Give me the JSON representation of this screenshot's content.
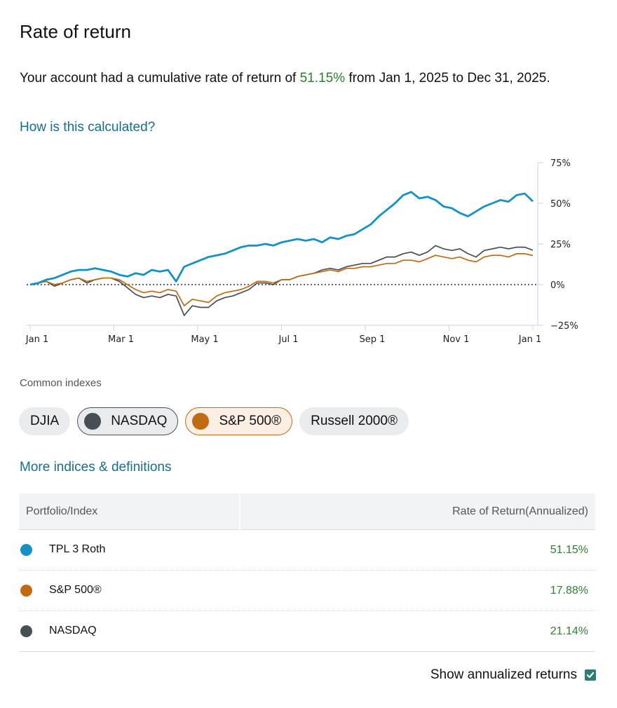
{
  "header": {
    "title": "Rate of return",
    "summary_prefix": "Your account had a cumulative rate of return of ",
    "summary_value": "51.15%",
    "summary_suffix": " from Jan 1, 2025 to Dec 31, 2025.",
    "calc_link": "How is this calculated?"
  },
  "colors": {
    "portfolio": "#1491c6",
    "sp500": "#c06a14",
    "nasdaq": "#474e56",
    "positive": "#2e7d32",
    "link": "#136f8e",
    "axis": "#c9d6ea"
  },
  "chart_data": {
    "type": "line",
    "title": "",
    "xlabel": "",
    "ylabel": "",
    "x_ticks": [
      "Jan 1",
      "Mar 1",
      "May 1",
      "Jul 1",
      "Sep 1",
      "Nov 1",
      "Jan 1"
    ],
    "y_ticks": [
      "75%",
      "50%",
      "25%",
      "0%",
      "−25%"
    ],
    "y_tick_values": [
      75,
      50,
      25,
      0,
      -25
    ],
    "ylim": [
      -25,
      75
    ],
    "xlim_weeks": [
      0,
      52
    ],
    "reference_line": {
      "value": 0,
      "style": "dotted"
    },
    "grid": false,
    "legend": "none",
    "series": [
      {
        "name": "TPL 3 Roth",
        "color": "#1491c6",
        "values": [
          0,
          1,
          3,
          4,
          6,
          8,
          9,
          9,
          10,
          9,
          8,
          6,
          5,
          7,
          6,
          9,
          8,
          9,
          2,
          11,
          13,
          15,
          17,
          18,
          19,
          21,
          23,
          24,
          24,
          25,
          24,
          26,
          27,
          28,
          27,
          28,
          26,
          29,
          28,
          30,
          31,
          34,
          37,
          42,
          46,
          50,
          55,
          57,
          53,
          54,
          52,
          48,
          47,
          44,
          42,
          45,
          48,
          50,
          52,
          51,
          55,
          56,
          51.15
        ]
      },
      {
        "name": "S&P 500®",
        "color": "#c06a14",
        "values": [
          0,
          1,
          2,
          0,
          1,
          3,
          4,
          2,
          3,
          4,
          4,
          3,
          0,
          -3,
          -5,
          -4,
          -5,
          -3,
          -4,
          -13,
          -9,
          -10,
          -11,
          -7,
          -5,
          -4,
          -3,
          -1,
          2,
          2,
          1,
          3,
          3,
          5,
          6,
          7,
          8,
          9,
          8,
          10,
          10,
          11,
          11,
          12,
          13,
          13,
          15,
          15,
          14,
          16,
          18,
          17,
          16,
          17,
          15,
          14,
          17,
          18,
          18,
          17,
          19,
          19,
          17.88
        ]
      },
      {
        "name": "NASDAQ",
        "color": "#474e56",
        "values": [
          0,
          1,
          2,
          -1,
          1,
          3,
          4,
          1,
          3,
          4,
          4,
          2,
          -2,
          -6,
          -8,
          -7,
          -8,
          -6,
          -7,
          -19,
          -13,
          -14,
          -14,
          -10,
          -8,
          -7,
          -5,
          -3,
          1,
          1,
          0,
          3,
          3,
          5,
          6,
          7,
          9,
          10,
          9,
          11,
          12,
          13,
          13,
          15,
          17,
          17,
          19,
          20,
          18,
          20,
          24,
          22,
          21,
          22,
          19,
          17,
          21,
          22,
          23,
          22,
          23,
          23,
          21.14
        ]
      }
    ]
  },
  "indexes": {
    "label": "Common indexes",
    "chips": [
      {
        "label": "DJIA",
        "active": false
      },
      {
        "label": "NASDAQ",
        "active": true
      },
      {
        "label": "S&P 500®",
        "active": true
      },
      {
        "label": "Russell 2000®",
        "active": false
      }
    ],
    "more_link": "More indices & definitions"
  },
  "table": {
    "headers": [
      "Portfolio/Index",
      "Rate of Return(Annualized)"
    ],
    "rows": [
      {
        "name": "TPL 3 Roth",
        "value": "51.15%"
      },
      {
        "name": "S&P 500®",
        "value": "17.88%"
      },
      {
        "name": "NASDAQ",
        "value": "21.14%"
      }
    ]
  },
  "annualized": {
    "label": "Show annualized returns",
    "checked": true
  }
}
